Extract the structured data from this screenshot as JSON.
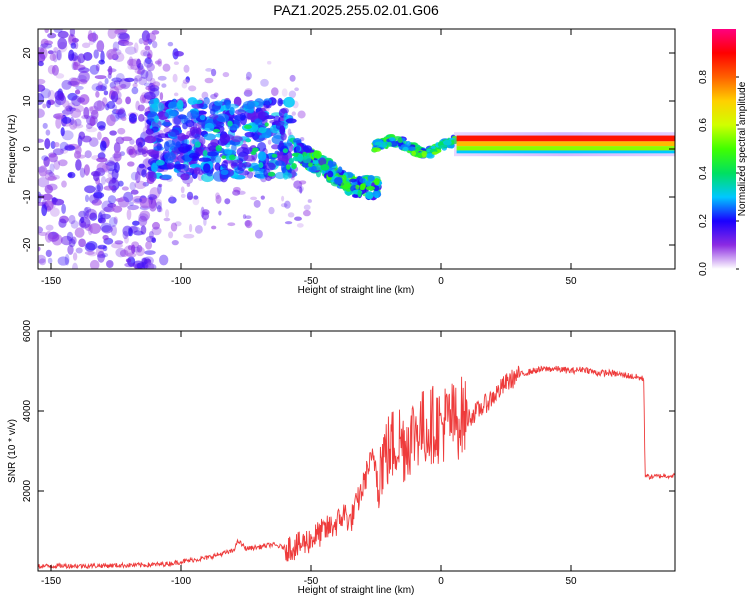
{
  "title": "PAZ1.2025.255.02.01.G06",
  "chart_data": [
    {
      "type": "heatmap",
      "xlabel": "Height of straight line (km)",
      "ylabel": "Frequency (Hz)",
      "xlim": [
        -155,
        90
      ],
      "ylim": [
        -25,
        25
      ],
      "xticks": [
        -150,
        -100,
        -50,
        0,
        50
      ],
      "yticks": [
        -20,
        -10,
        0,
        10,
        20
      ],
      "colorbar": {
        "label": "Normalized spectral amplitude",
        "range": [
          0,
          1
        ],
        "ticks": [
          0,
          0.2,
          0.4,
          0.6,
          0.8
        ],
        "colormap": "rainbow",
        "colors": [
          "#ffffff",
          "#8c2be2",
          "#1a00ff",
          "#00c8ff",
          "#00e060",
          "#40ff00",
          "#d0ff00",
          "#ffd000",
          "#ff6000",
          "#ff0000",
          "#ff0080"
        ]
      },
      "features": [
        {
          "x_range": [
            -155,
            -110
          ],
          "frequency_range": [
            -25,
            25
          ],
          "amplitude": "low (0.05-0.2)",
          "pattern": "scattered"
        },
        {
          "x_range": [
            -110,
            -60
          ],
          "frequency_range": [
            -10,
            10
          ],
          "amplitude": "0.1-0.35",
          "pattern": "dense clustered"
        },
        {
          "x_range": [
            -55,
            -25
          ],
          "frequency_center": [
            0,
            -7
          ],
          "amplitude": "0.2-0.5",
          "pattern": "descending trace"
        },
        {
          "x_range": [
            -25,
            5
          ],
          "frequency_center": [
            -2,
            2
          ],
          "amplitude": "0.3-0.6",
          "pattern": "narrow trace"
        },
        {
          "x_range": [
            5,
            90
          ],
          "frequency_center": [
            1,
            2
          ],
          "amplitude": "0.8-1.0",
          "pattern": "narrow band"
        }
      ],
      "grid": false,
      "legend": "colorbar-right"
    },
    {
      "type": "line",
      "xlabel": "Height of straight line (km)",
      "ylabel": "SNR (10 * v/v)",
      "xlim": [
        -155,
        90
      ],
      "ylim": [
        0,
        6000
      ],
      "xticks": [
        -150,
        -100,
        -50,
        0,
        50
      ],
      "yticks": [
        2000,
        4000,
        6000
      ],
      "color": "#ee3b3b",
      "series": [
        {
          "x": [
            -155,
            -145,
            -135,
            -125,
            -115,
            -110,
            -105,
            -100,
            -95,
            -90,
            -85,
            -80,
            -78,
            -75,
            -70,
            -65,
            -60,
            -55,
            -50,
            -45,
            -40,
            -37,
            -35,
            -32,
            -30,
            -28,
            -26,
            -24,
            -22,
            -20,
            -18,
            -16,
            -14,
            -12,
            -10,
            -8,
            -6,
            -4,
            -2,
            0,
            2,
            4,
            6,
            8,
            10,
            12,
            15,
            20,
            25,
            30,
            35,
            40,
            45,
            50,
            55,
            60,
            65,
            70,
            75,
            78,
            78.5,
            80,
            85,
            90
          ],
          "y": [
            120,
            130,
            130,
            140,
            150,
            160,
            180,
            230,
            280,
            330,
            420,
            500,
            750,
            560,
            600,
            660,
            580,
            620,
            800,
            1000,
            1200,
            1450,
            1200,
            1750,
            2100,
            2600,
            2800,
            2500,
            2900,
            3000,
            3200,
            3300,
            3150,
            3350,
            3500,
            3600,
            3550,
            3650,
            3700,
            3600,
            3750,
            3800,
            3700,
            3900,
            3800,
            3900,
            4050,
            4350,
            4700,
            4900,
            5000,
            5050,
            5050,
            5000,
            5050,
            4950,
            4950,
            4900,
            4850,
            4800,
            2400,
            2350,
            2380,
            2380
          ]
        }
      ],
      "grid": false
    }
  ]
}
